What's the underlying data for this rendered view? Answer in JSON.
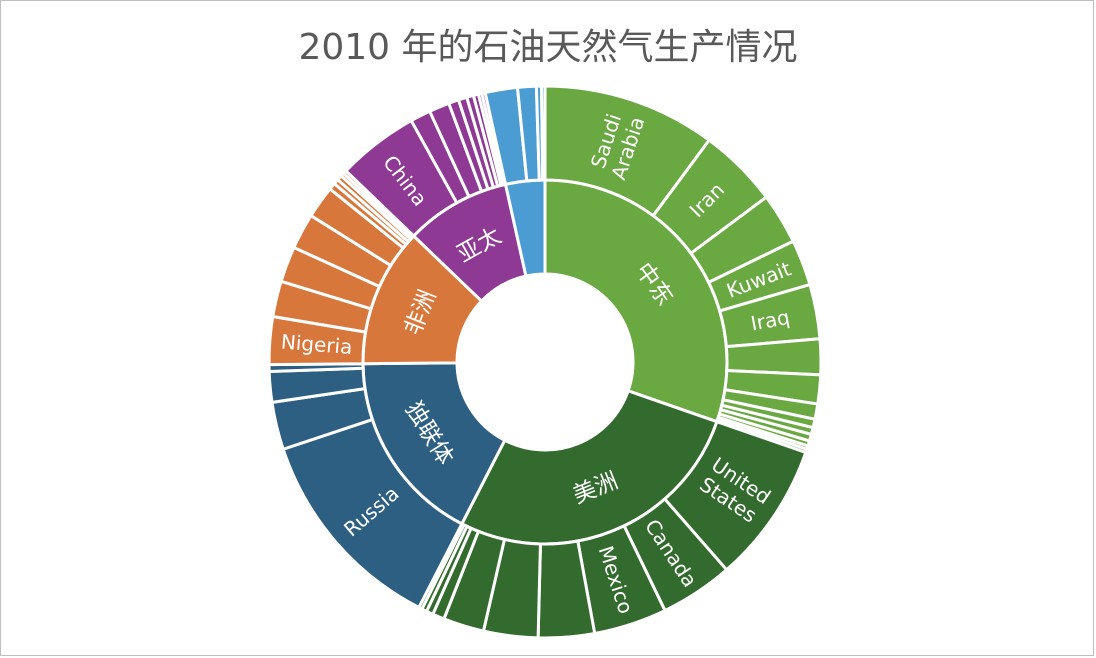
{
  "title": "2010 年的石油天然气生产情况",
  "chart_data": {
    "type": "sunburst",
    "title": "2010 年的石油天然气生产情况",
    "regions": [
      {
        "name": "中东",
        "color": "#6aa842",
        "value": 30.5,
        "children": [
          {
            "name": "Saudi\nArabia",
            "value": 10.2
          },
          {
            "name": "Iran",
            "value": 4.7
          },
          {
            "name": "",
            "value": 3.0
          },
          {
            "name": "Kuwait",
            "value": 2.7
          },
          {
            "name": "Iraq",
            "value": 3.2
          },
          {
            "name": "",
            "value": 2.1
          },
          {
            "name": "",
            "value": 1.7
          },
          {
            "name": "",
            "value": 0.9
          },
          {
            "name": "",
            "value": 0.5
          },
          {
            "name": "",
            "value": 0.4
          },
          {
            "name": "",
            "value": 0.4
          },
          {
            "name": "",
            "value": 0.3
          },
          {
            "name": "",
            "value": 0.2
          },
          {
            "name": "",
            "value": 0.2
          }
        ]
      },
      {
        "name": "美洲",
        "color": "#336a2d",
        "value": 27.4,
        "children": [
          {
            "name": "United\nStates",
            "value": 8.3
          },
          {
            "name": "Canada",
            "value": 4.3
          },
          {
            "name": "Mexico",
            "value": 4.3
          },
          {
            "name": "",
            "value": 3.3
          },
          {
            "name": "",
            "value": 3.2
          },
          {
            "name": "",
            "value": 2.4
          },
          {
            "name": "",
            "value": 0.7
          },
          {
            "name": "",
            "value": 0.4
          },
          {
            "name": "",
            "value": 0.3
          },
          {
            "name": "",
            "value": 0.2
          }
        ]
      },
      {
        "name": "独联体",
        "color": "#2d5f82",
        "value": 17.4,
        "children": [
          {
            "name": "Russia",
            "value": 12.4
          },
          {
            "name": "",
            "value": 2.8
          },
          {
            "name": "",
            "value": 1.8
          },
          {
            "name": "",
            "value": 0.4
          }
        ]
      },
      {
        "name": "非洲",
        "color": "#d8773b",
        "value": 12.4,
        "children": [
          {
            "name": "Nigeria",
            "value": 2.8
          },
          {
            "name": "",
            "value": 2.1
          },
          {
            "name": "",
            "value": 2.1
          },
          {
            "name": "",
            "value": 2.1
          },
          {
            "name": "",
            "value": 1.9
          },
          {
            "name": "",
            "value": 0.4
          },
          {
            "name": "",
            "value": 0.3
          },
          {
            "name": "",
            "value": 0.3
          },
          {
            "name": "",
            "value": 0.2
          },
          {
            "name": "",
            "value": 0.2
          }
        ]
      },
      {
        "name": "亚太",
        "color": "#8e3a94",
        "value": 9.4,
        "children": [
          {
            "name": "China",
            "value": 4.8
          },
          {
            "name": "",
            "value": 1.2
          },
          {
            "name": "",
            "value": 1.2
          },
          {
            "name": "",
            "value": 0.6
          },
          {
            "name": "",
            "value": 0.5
          },
          {
            "name": "",
            "value": 0.4
          },
          {
            "name": "",
            "value": 0.3
          },
          {
            "name": "",
            "value": 0.2
          },
          {
            "name": "",
            "value": 0.2
          }
        ]
      },
      {
        "name": "",
        "color": "#4a9cd3",
        "value": 3.5,
        "children": [
          {
            "name": "",
            "value": 1.9
          },
          {
            "name": "",
            "value": 1.1
          },
          {
            "name": "",
            "value": 0.3
          },
          {
            "name": "",
            "value": 0.2
          }
        ]
      }
    ]
  }
}
